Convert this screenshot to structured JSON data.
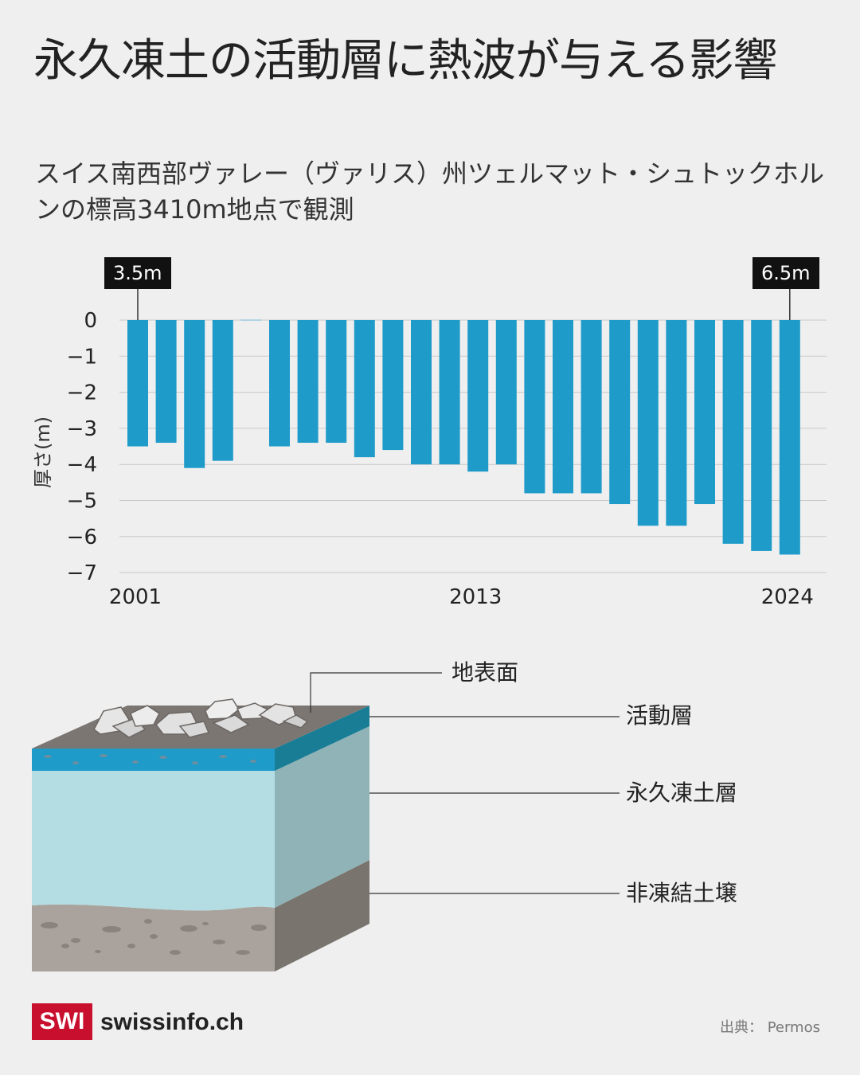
{
  "title": "永久凍土の活動層に熱波が与える影響",
  "subtitle": "スイス南西部ヴァレー（ヴァリス）州ツェルマット・シュトックホルンの標高3410m地点で観測",
  "chart_data": {
    "type": "bar",
    "ylabel": "厚さ(m)",
    "ylim": [
      -7,
      0
    ],
    "yticks": [
      "0",
      "−1",
      "−2",
      "−3",
      "−4",
      "−5",
      "−6",
      "−7"
    ],
    "x": [
      2001,
      2002,
      2003,
      2004,
      2005,
      2006,
      2007,
      2008,
      2009,
      2010,
      2011,
      2012,
      2013,
      2014,
      2015,
      2016,
      2017,
      2018,
      2019,
      2020,
      2021,
      2022,
      2023,
      2024
    ],
    "values": [
      -3.5,
      -3.4,
      -4.1,
      -3.9,
      null,
      -3.5,
      -3.4,
      -3.4,
      -3.8,
      -3.6,
      -4.0,
      -4.0,
      -4.2,
      -4.0,
      -4.8,
      -4.8,
      -4.8,
      -5.1,
      -5.7,
      -5.7,
      -5.1,
      -6.2,
      -6.4,
      -6.5
    ],
    "xtick_labels": [
      "2001",
      "2013",
      "2024"
    ],
    "annotations": [
      {
        "year": 2001,
        "text": "3.5m"
      },
      {
        "year": 2024,
        "text": "6.5m"
      }
    ],
    "bar_color": "#1e9bc9",
    "grid": true
  },
  "diagram": {
    "labels": {
      "surface": "地表面",
      "active_layer": "活動層",
      "permafrost": "永久凍土層",
      "unfrozen": "非凍結土壌"
    },
    "colors": {
      "active_layer": "#1e9bc9",
      "permafrost": "#b3dde2",
      "unfrozen": "#aaa39d"
    }
  },
  "footer": {
    "logo": "SWI",
    "site": "swissinfo.ch",
    "source": "出典：  Permos"
  }
}
